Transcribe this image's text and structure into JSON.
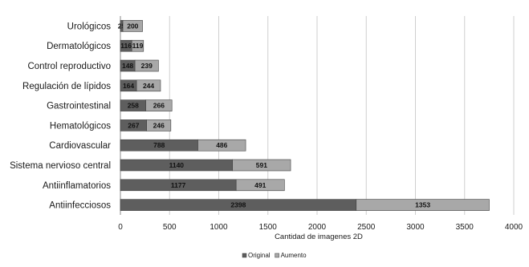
{
  "chart_data": {
    "type": "bar",
    "orientation": "horizontal",
    "stacked": true,
    "categories": [
      "Urológicos",
      "Dermatológicos",
      "Control reproductivo",
      "Regulación de lípidos",
      "Gastrointestinal",
      "Hematológicos",
      "Cardiovascular",
      "Sistema nervioso central",
      "Antiinflamatorios",
      "Antiinfecciosos"
    ],
    "series": [
      {
        "name": "Original",
        "values": [
          25,
          116,
          148,
          164,
          258,
          267,
          788,
          1140,
          1177,
          2398
        ],
        "color": "#5e5e5e"
      },
      {
        "name": "Aumento",
        "values": [
          200,
          119,
          239,
          244,
          266,
          246,
          486,
          591,
          491,
          1353
        ],
        "color": "#a8a8a8"
      }
    ],
    "xlabel": "Cantidad de imagenes 2D",
    "ylabel": "",
    "xlim": [
      0,
      4000
    ],
    "xticks": [
      0,
      500,
      1000,
      1500,
      2000,
      2500,
      3000,
      3500,
      4000
    ],
    "grid": "vertical",
    "legend": "bottom"
  }
}
